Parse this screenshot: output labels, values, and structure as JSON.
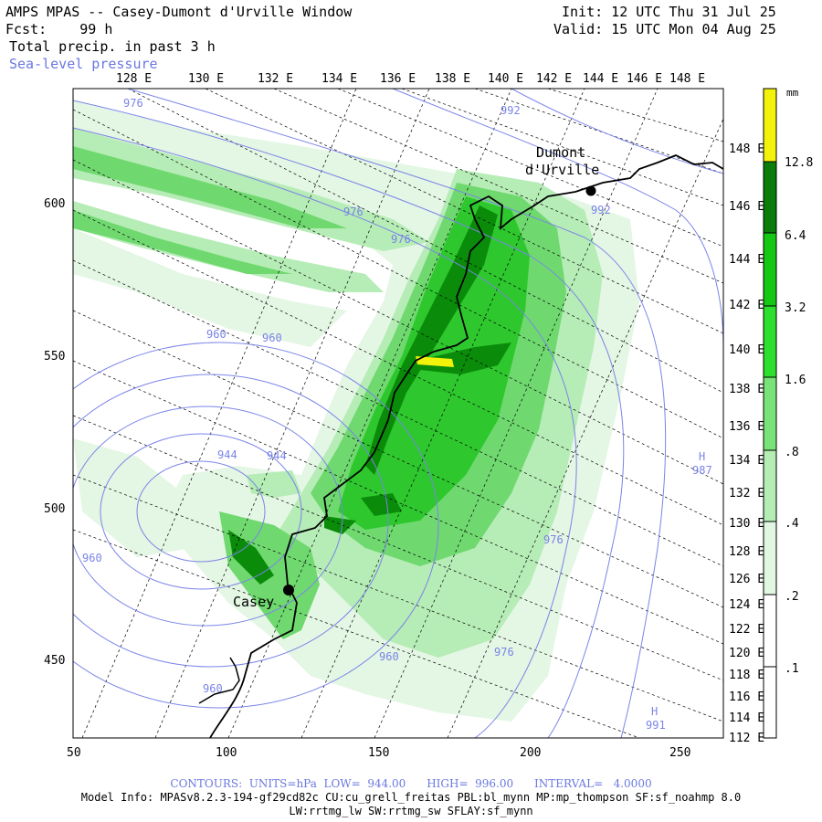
{
  "header": {
    "title": "AMPS MPAS -- Casey-Dumont d'Urville Window",
    "fcst_label": "Fcst:",
    "fcst_value": "99 h",
    "field": "Total precip. in past 3 h",
    "overlay": "Sea-level pressure",
    "init": "Init: 12 UTC Thu 31 Jul 25",
    "valid": "Valid: 15 UTC Mon 04 Aug 25"
  },
  "map": {
    "top_lon_labels": [
      "128 E",
      "130 E",
      "132 E",
      "134 E",
      "136 E",
      "138 E",
      "140 E",
      "142 E",
      "144 E",
      "146 E",
      "148 E"
    ],
    "right_lon_labels": [
      "148 E",
      "146 E",
      "144 E",
      "142 E",
      "140 E",
      "138 E",
      "136 E",
      "134 E",
      "132 E",
      "130 E",
      "128 E",
      "126 E",
      "124 E",
      "122 E",
      "120 E",
      "118 E",
      "116 E",
      "114 E",
      "112 E"
    ],
    "x_ticks": [
      "50",
      "100",
      "150",
      "200",
      "250"
    ],
    "y_ticks": [
      "600",
      "550",
      "500",
      "450"
    ],
    "stations": [
      {
        "name_line1": "Dumont",
        "name_line2": "d'Urville"
      },
      {
        "name_line1": "Casey",
        "name_line2": ""
      }
    ],
    "isobar_labels": [
      "976",
      "992",
      "976",
      "976",
      "992",
      "960",
      "960",
      "944",
      "944",
      "960",
      "976",
      "976",
      "960",
      "960",
      "H",
      "987",
      "H",
      "991"
    ],
    "colors": {
      "precip_light": "#e4f6e4",
      "precip_lg": "#b6ecb6",
      "precip_mid": "#6fd96f",
      "precip_green": "#2ec82e",
      "precip_dark": "#0a8c0a",
      "precip_darkest": "#006400",
      "precip_yellow": "#f2f20a",
      "isobar": "#7b84e8"
    }
  },
  "colorbar": {
    "unit": "mm",
    "labels": [
      "12.8",
      "6.4",
      "3.2",
      "1.6",
      ".8",
      ".4",
      ".2",
      ".1"
    ],
    "colors": [
      "#f2f20a",
      "#0a7d0a",
      "#14c814",
      "#2ee02e",
      "#78e478",
      "#b4eeb4",
      "#e2f7e2",
      "#ffffff"
    ]
  },
  "footer": {
    "contours": "CONTOURS:  UNITS=hPa  LOW=  944.00      HIGH=  996.00      INTERVAL=   4.0000",
    "model_info": "Model Info: MPASv8.2.3-194-gf29cd82c CU:cu_grell_freitas PBL:bl_mynn MP:mp_thompson SF:sf_noahmp 8.0",
    "model_info2": "LW:rrtmg_lw SW:rrtmg_sw SFLAY:sf_mynn"
  }
}
